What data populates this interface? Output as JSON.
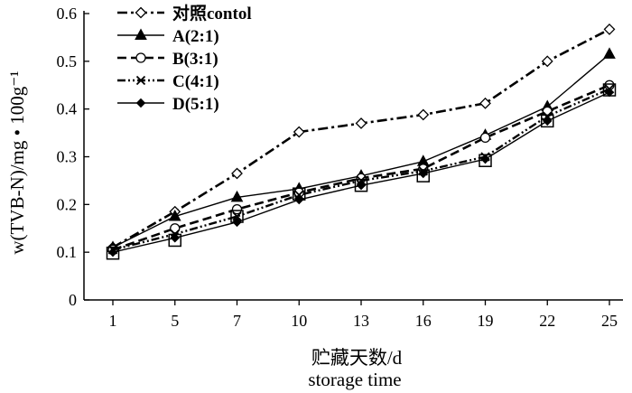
{
  "chart_data": {
    "type": "line",
    "x": [
      "1",
      "5",
      "7",
      "10",
      "13",
      "16",
      "19",
      "22",
      "25"
    ],
    "ylim": [
      0,
      0.6
    ],
    "yticks": [
      "0",
      "0.1",
      "0.2",
      "0.3",
      "0.4",
      "0.5",
      "0.6"
    ],
    "ylabel": "w(TVB-N)/mg • 100g⁻¹",
    "xlabel": "贮藏天数/d",
    "xlabel_en": "storage time",
    "grid": false,
    "legend_position": "top-left",
    "series": [
      {
        "name": "对照contol",
        "marker": "diamond-open",
        "dash": "dash-dot",
        "values": [
          0.11,
          0.185,
          0.265,
          0.352,
          0.37,
          0.388,
          0.412,
          0.5,
          0.567
        ]
      },
      {
        "name": "A(2:1)",
        "marker": "triangle-filled",
        "dash": "solid",
        "values": [
          0.11,
          0.175,
          0.215,
          0.233,
          0.26,
          0.29,
          0.345,
          0.405,
          0.515
        ]
      },
      {
        "name": "B(3:1)",
        "marker": "circle-open",
        "dash": "dashed",
        "values": [
          0.105,
          0.15,
          0.19,
          0.225,
          0.255,
          0.275,
          0.34,
          0.395,
          0.45
        ]
      },
      {
        "name": "C(4:1)",
        "marker": "x",
        "dash": "dash-dot-dot",
        "values": [
          0.105,
          0.138,
          0.175,
          0.22,
          0.25,
          0.27,
          0.3,
          0.385,
          0.442
        ]
      },
      {
        "name": "D(5:1)",
        "marker": "diamond-filled",
        "dash": "solid",
        "values": [
          0.1,
          0.13,
          0.163,
          0.21,
          0.24,
          0.265,
          0.295,
          0.375,
          0.435
        ]
      },
      {
        "name": "",
        "marker": "square-open",
        "dash": "none",
        "values": [
          0.098,
          0.125,
          0.175,
          0.222,
          0.24,
          0.26,
          0.292,
          0.375,
          0.44
        ]
      }
    ]
  }
}
